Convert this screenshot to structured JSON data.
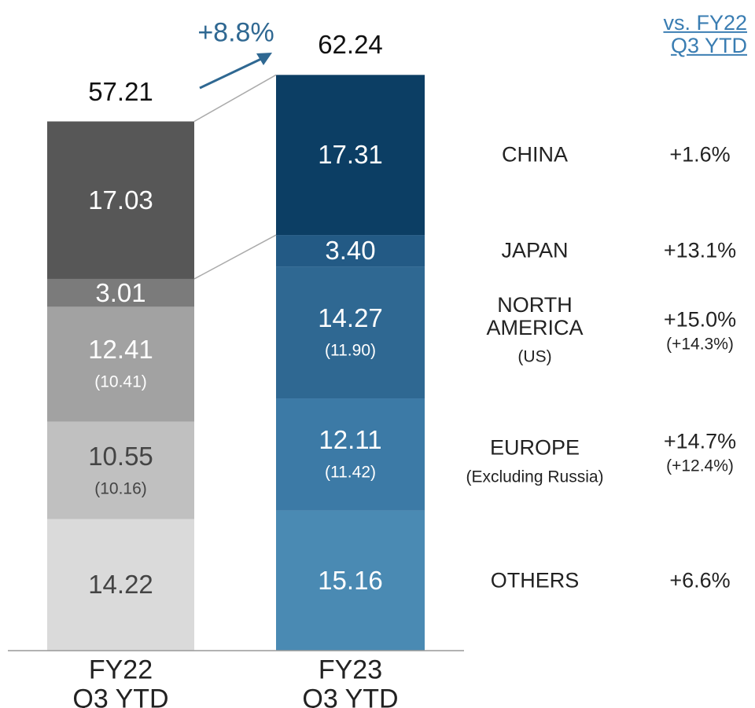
{
  "chart_data": {
    "type": "stacked-bar",
    "categories": [
      "FY22\nQ3 YTD",
      "FY23\nQ3 YTD"
    ],
    "colors": [
      "gray",
      "blue"
    ],
    "totals": [
      57.21,
      62.24
    ],
    "growth": "+8.8%",
    "comparison_header": "vs. FY22\nQ3 YTD",
    "series": [
      {
        "name": "CHINA",
        "colors": [
          "#575757",
          "#0c3e64"
        ],
        "values": [
          17.03,
          17.31
        ],
        "value_labels": [
          "17.03",
          "17.31"
        ],
        "change": "+1.6%"
      },
      {
        "name": "JAPAN",
        "colors": [
          "#7b7b7b",
          "#235a85"
        ],
        "values": [
          3.01,
          3.4
        ],
        "value_labels": [
          "3.01",
          "3.40"
        ],
        "change": "+13.1%"
      },
      {
        "name": "NORTH\nAMERICA",
        "sub_name": "(US)",
        "colors": [
          "#a2a2a2",
          "#2f6892"
        ],
        "values": [
          12.41,
          14.27
        ],
        "value_labels": [
          "12.41",
          "14.27"
        ],
        "sub_values": [
          10.41,
          11.9
        ],
        "sub_value_labels": [
          "(10.41)",
          "(11.90)"
        ],
        "change": "+15.0%",
        "sub_change": "(+14.3%)"
      },
      {
        "name": "EUROPE",
        "sub_name": "(Excluding Russia)",
        "colors": [
          "#c0c0c0",
          "#3c7aa6"
        ],
        "values": [
          10.55,
          12.11
        ],
        "value_labels": [
          "10.55",
          "12.11"
        ],
        "sub_values": [
          10.16,
          11.42
        ],
        "sub_value_labels": [
          "(10.16)",
          "(11.42)"
        ],
        "change": "+14.7%",
        "sub_change": "(+12.4%)"
      },
      {
        "name": "OTHERS",
        "colors": [
          "#dadada",
          "#4a8ab3"
        ],
        "values": [
          14.22,
          15.16
        ],
        "value_labels": [
          "14.22",
          "15.16"
        ],
        "change": "+6.6%"
      }
    ]
  }
}
